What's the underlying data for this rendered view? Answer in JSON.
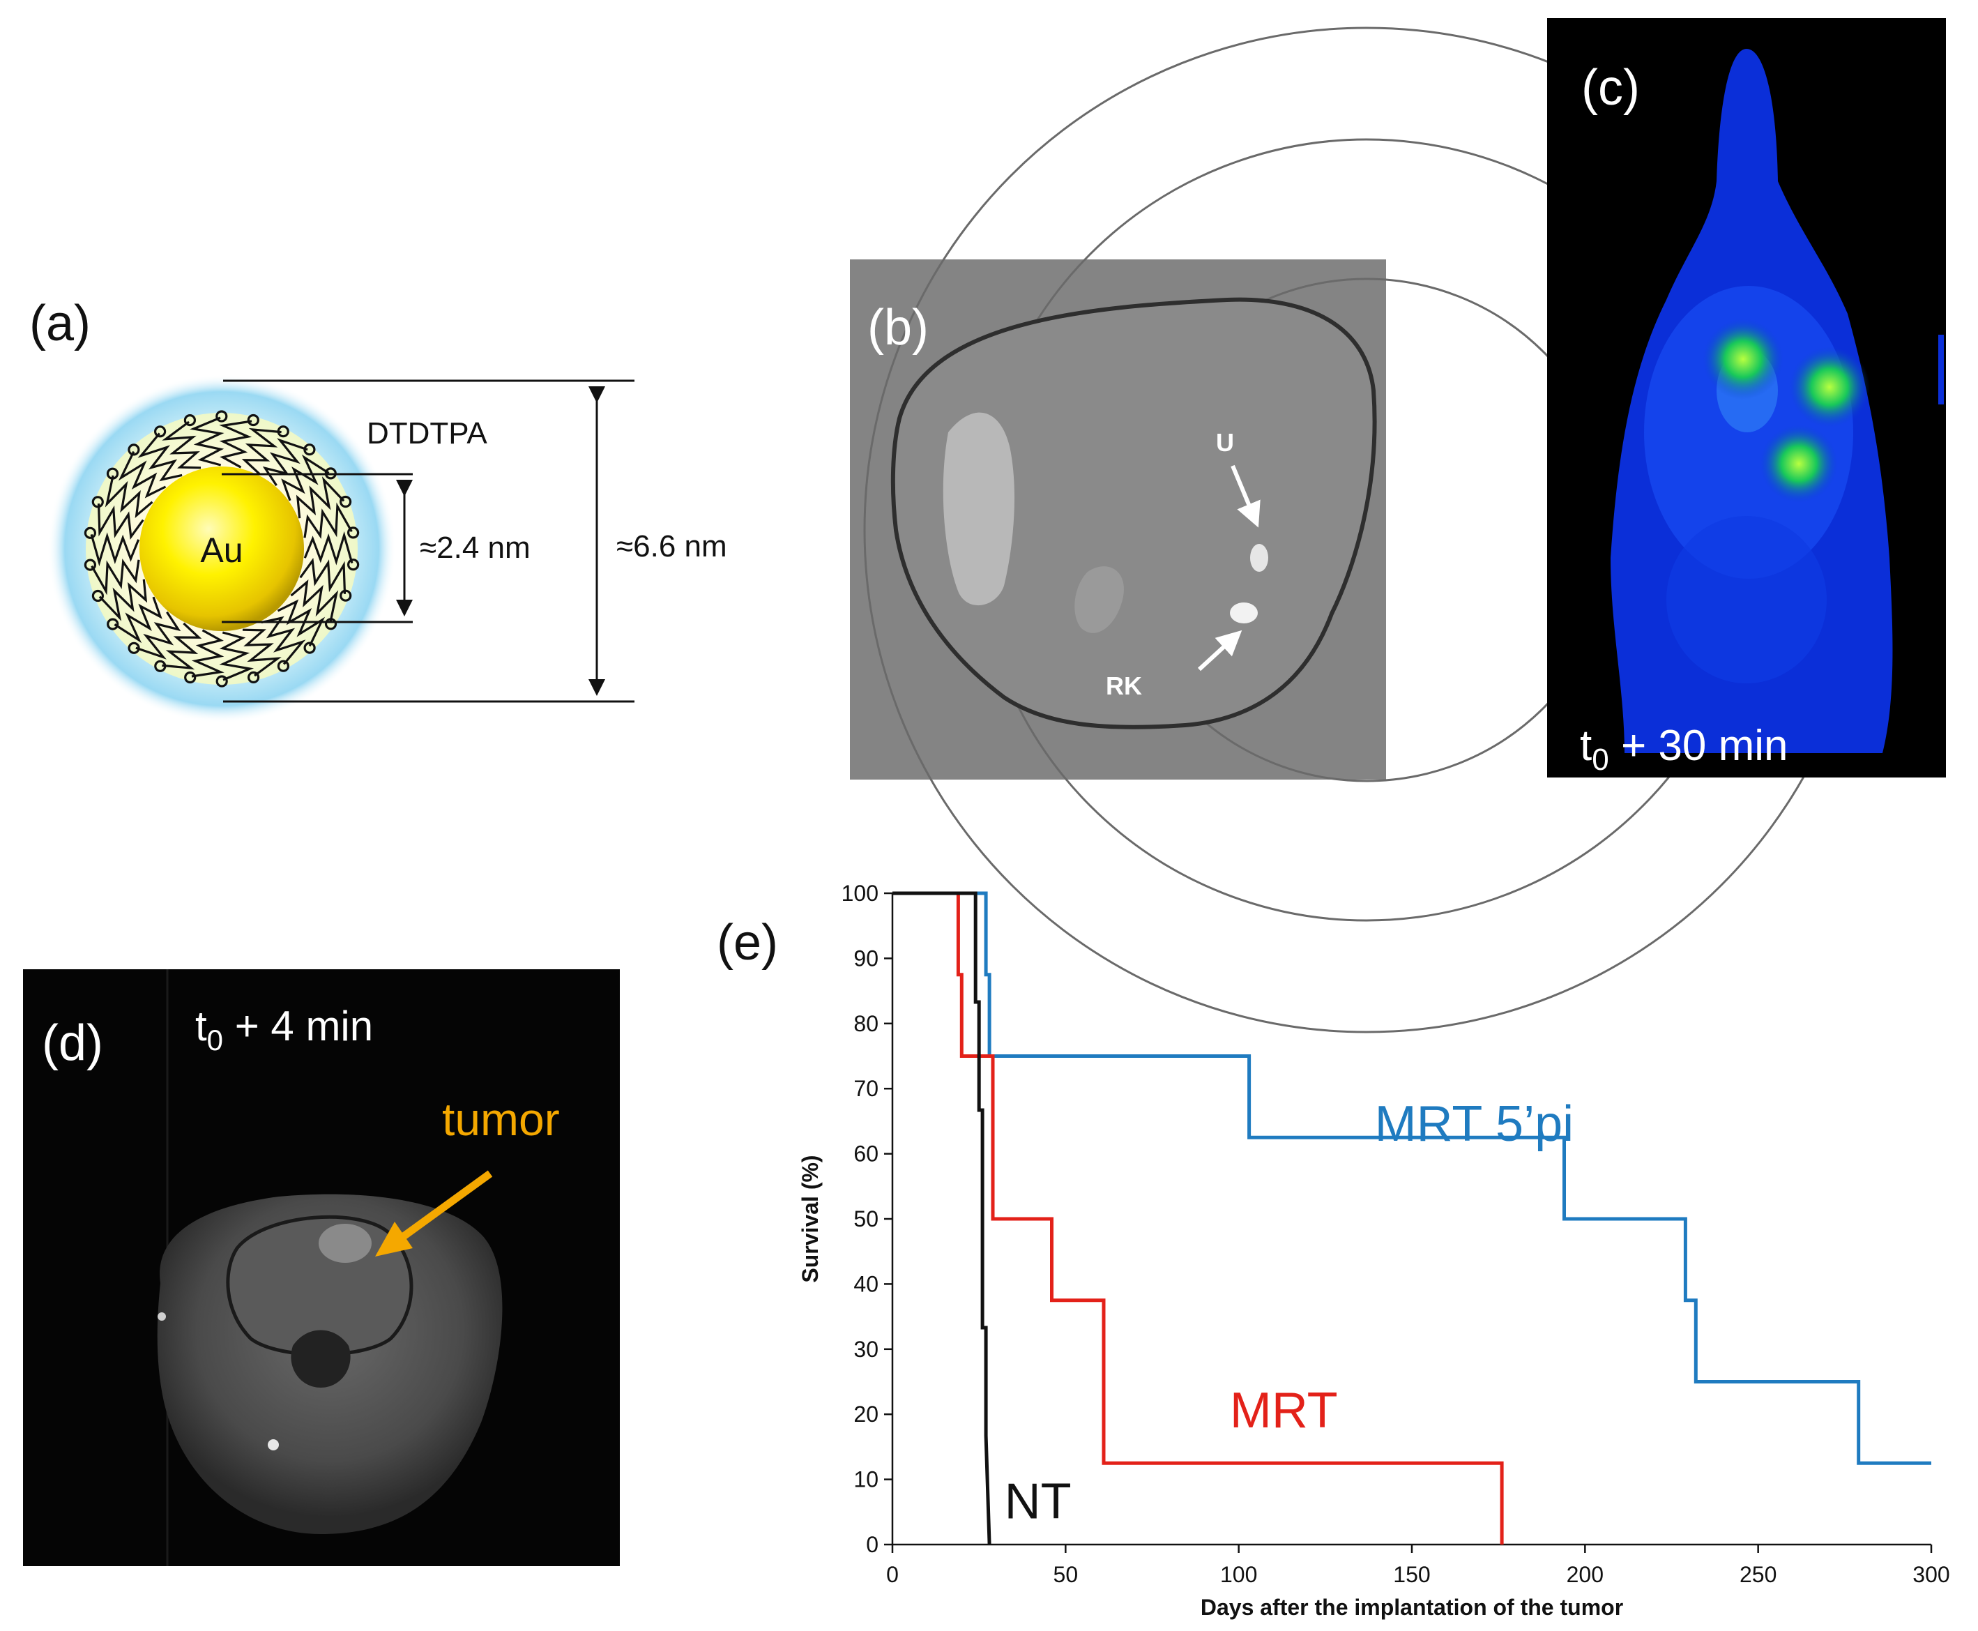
{
  "figure": {
    "panel_a": {
      "label": "(a)",
      "core_label": "Au",
      "shell_label": "DTDTPA",
      "inner_dim": "≈2.4 nm",
      "outer_dim": "≈6.6 nm"
    },
    "panel_b": {
      "label": "(b)",
      "marker_u": "U",
      "marker_rk": "RK"
    },
    "panel_c": {
      "label": "(c)",
      "time_label": "t",
      "time_sub": "0",
      "time_rest": " + 30 min"
    },
    "panel_d": {
      "label": "(d)",
      "time_label": "t",
      "time_sub": "0",
      "time_rest": " +  4 min",
      "tumor_label": "tumor",
      "tumor_color": "#F5A800"
    },
    "panel_e": {
      "label": "(e)"
    }
  },
  "chart_data": {
    "type": "line",
    "step": true,
    "title": "",
    "xlabel": "Days after the implantation of the tumor",
    "ylabel": "Survival (%)",
    "xlim": [
      0,
      300
    ],
    "ylim": [
      0,
      100
    ],
    "xticks": [
      0,
      50,
      100,
      150,
      200,
      250,
      300
    ],
    "yticks": [
      0,
      10,
      20,
      30,
      40,
      50,
      60,
      70,
      80,
      90,
      100
    ],
    "series": [
      {
        "name": "MRT 5’pi",
        "color": "#1F7BC0",
        "x": [
          0,
          26,
          26,
          27,
          27,
          28,
          28,
          103,
          103,
          194,
          194,
          229,
          229,
          232,
          232,
          279,
          279,
          300
        ],
        "y": [
          100,
          100,
          100,
          100,
          87.5,
          87.5,
          75,
          75,
          62.5,
          62.5,
          50,
          50,
          37.5,
          37.5,
          25,
          25,
          12.5,
          12.5
        ]
      },
      {
        "name": "MRT",
        "color": "#E32119",
        "x": [
          0,
          18,
          18,
          19,
          19,
          20,
          20,
          28,
          28,
          29,
          29,
          46,
          46,
          61,
          61,
          176,
          176
        ],
        "y": [
          100,
          100,
          100,
          100,
          87.5,
          87.5,
          75,
          75,
          75,
          75,
          50,
          50,
          37.5,
          37.5,
          12.5,
          12.5,
          0
        ]
      },
      {
        "name": "NT",
        "color": "#111111",
        "x": [
          0,
          24,
          24,
          25,
          25,
          26,
          26,
          27,
          27,
          28
        ],
        "y": [
          100,
          100,
          83.3,
          83.3,
          66.7,
          66.7,
          33.3,
          33.3,
          16.7,
          0
        ]
      }
    ]
  }
}
